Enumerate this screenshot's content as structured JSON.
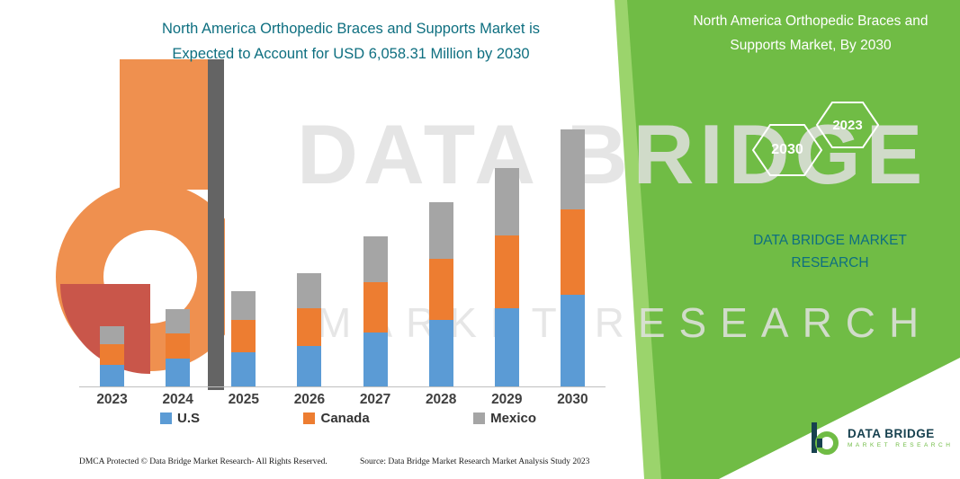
{
  "title": {
    "line1": "North America Orthopedic Braces and Supports Market is",
    "line2": "Expected to Account for USD 6,058.31 Million by 2030"
  },
  "side_panel": {
    "title_line1": "North America Orthopedic Braces and",
    "title_line2": "Supports Market, By 2030",
    "hexagons": [
      {
        "label": "2030"
      },
      {
        "label": "2023"
      }
    ],
    "brand_line1": "DATA BRIDGE MARKET",
    "brand_line2": "RESEARCH"
  },
  "watermark": {
    "line1": "DATA BRIDGE",
    "line2": "MARKET RESEARCH"
  },
  "footer": {
    "dmca": "DMCA Protected © Data Bridge Market Research-  All Rights Reserved.",
    "source": "Source: Data Bridge Market Research  Market Analysis Study 2023"
  },
  "logo": {
    "name": "DATA BRIDGE",
    "sub": "MARKET RESEARCH"
  },
  "colors": {
    "accent_green": "#70BC45",
    "teal": "#0E6F80",
    "us_blue": "#5B9BD5",
    "canada_orange": "#ED7D31",
    "mexico_gray": "#A5A5A5"
  },
  "chart_data": {
    "type": "bar",
    "stacked": true,
    "title": "North America Orthopedic Braces and Supports Market (USD Million)",
    "categories": [
      "2023",
      "2024",
      "2025",
      "2026",
      "2027",
      "2028",
      "2029",
      "2030"
    ],
    "series": [
      {
        "name": "U.S",
        "color": "#5B9BD5",
        "values": [
          520,
          660,
          810,
          960,
          1270,
          1560,
          1840,
          2160
        ]
      },
      {
        "name": "Canada",
        "color": "#ED7D31",
        "values": [
          470,
          600,
          750,
          890,
          1190,
          1460,
          1720,
          2020
        ]
      },
      {
        "name": "Mexico",
        "color": "#A5A5A5",
        "values": [
          440,
          560,
          690,
          820,
          1090,
          1330,
          1590,
          1878.31
        ]
      }
    ],
    "totals": [
      1430,
      1820,
      2250,
      2670,
      3550,
      4350,
      5150,
      6058.31
    ],
    "unit": "USD Million",
    "ylim": [
      0,
      7000
    ],
    "grid": false,
    "legend_position": "bottom",
    "annotation_total_2030": 6058.31
  }
}
